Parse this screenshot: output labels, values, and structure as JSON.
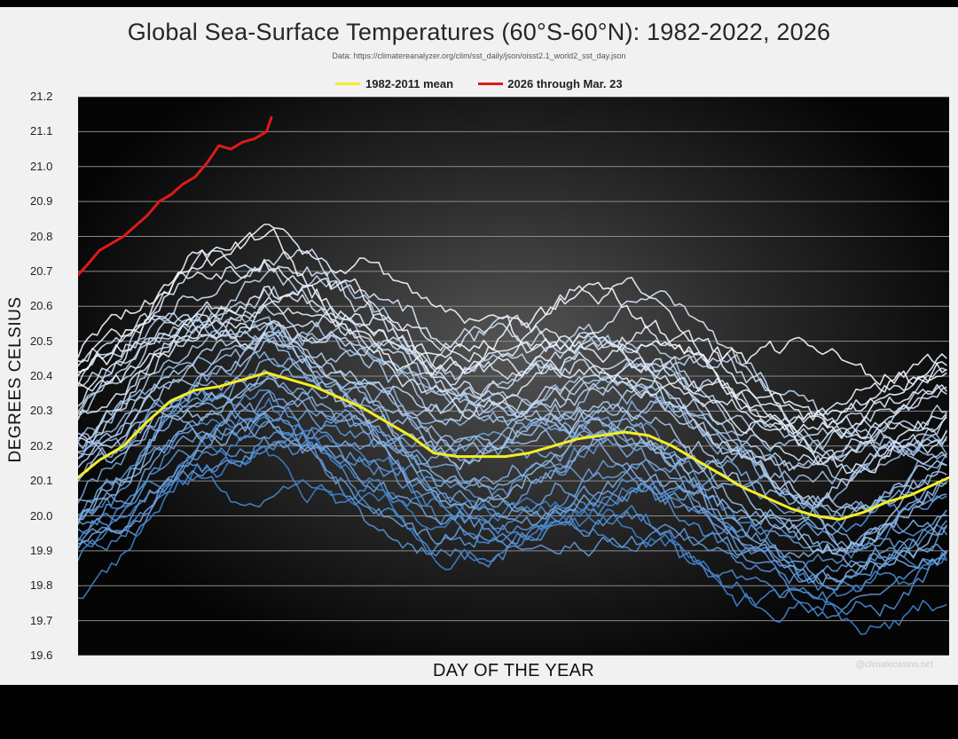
{
  "chart_data": {
    "type": "line",
    "title": "Global Sea-Surface Temperatures (60°S-60°N): 1982-2022, 2026",
    "source": "Data: https://climatereanalyzer.org/clim/sst_daily/json/oisst2.1_world2_sst_day.json",
    "xlabel": "DAY OF THE YEAR",
    "ylabel": "DEGREES CELSIUS",
    "xlim": [
      1,
      366
    ],
    "ylim": [
      19.6,
      21.2
    ],
    "yticks": [
      "21.2",
      "21.1",
      "21.0",
      "20.9",
      "20.8",
      "20.7",
      "20.6",
      "20.5",
      "20.4",
      "20.3",
      "20.2",
      "20.1",
      "20.0",
      "19.9",
      "19.8",
      "19.7",
      "19.6"
    ],
    "grid": true,
    "legend": {
      "position": "top-center",
      "entries": [
        {
          "label": "1982-2011 mean",
          "color": "#f2ee27"
        },
        {
          "label": "2026 through Mar. 23",
          "color": "#dd1a1a"
        }
      ]
    },
    "background_year_count": 41,
    "background_year_color_range": [
      "#3d7fc9",
      "#f2f6fb"
    ],
    "series": [
      {
        "name": "1982-2011 mean",
        "color": "#f2ee27",
        "x": [
          1,
          10,
          20,
          30,
          40,
          50,
          60,
          70,
          80,
          90,
          100,
          110,
          120,
          130,
          140,
          150,
          160,
          170,
          180,
          190,
          200,
          210,
          220,
          230,
          240,
          250,
          260,
          270,
          280,
          290,
          300,
          310,
          320,
          330,
          340,
          350,
          366
        ],
        "values": [
          20.11,
          20.16,
          20.2,
          20.27,
          20.33,
          20.36,
          20.37,
          20.39,
          20.41,
          20.39,
          20.37,
          20.34,
          20.31,
          20.27,
          20.23,
          20.18,
          20.17,
          20.17,
          20.17,
          20.18,
          20.2,
          20.22,
          20.23,
          20.24,
          20.23,
          20.2,
          20.16,
          20.12,
          20.08,
          20.05,
          20.02,
          20.0,
          19.99,
          20.01,
          20.04,
          20.06,
          20.11
        ]
      },
      {
        "name": "2026 through Mar. 23",
        "color": "#dd1a1a",
        "x": [
          1,
          5,
          10,
          15,
          20,
          25,
          30,
          35,
          40,
          45,
          50,
          55,
          60,
          65,
          70,
          75,
          80,
          82
        ],
        "values": [
          20.69,
          20.72,
          20.76,
          20.78,
          20.8,
          20.83,
          20.86,
          20.9,
          20.92,
          20.95,
          20.97,
          21.01,
          21.06,
          21.05,
          21.07,
          21.08,
          21.1,
          21.14
        ]
      }
    ]
  },
  "watermark": "@climatecasino.net"
}
